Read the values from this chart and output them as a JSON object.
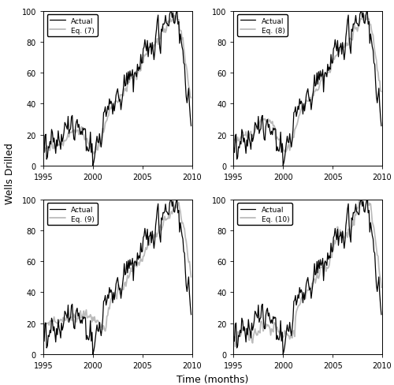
{
  "xlabel": "Time (months)",
  "ylabel": "Wells Drilled",
  "xlim": [
    1995,
    2010
  ],
  "ylim": [
    0,
    100
  ],
  "yticks": [
    0,
    20,
    40,
    60,
    80,
    100
  ],
  "xticks": [
    1995,
    2000,
    2005,
    2010
  ],
  "actual_color": "#000000",
  "model_color": "#bbbbbb",
  "actual_lw": 0.9,
  "model_lw": 1.3,
  "background_color": "#ffffff"
}
